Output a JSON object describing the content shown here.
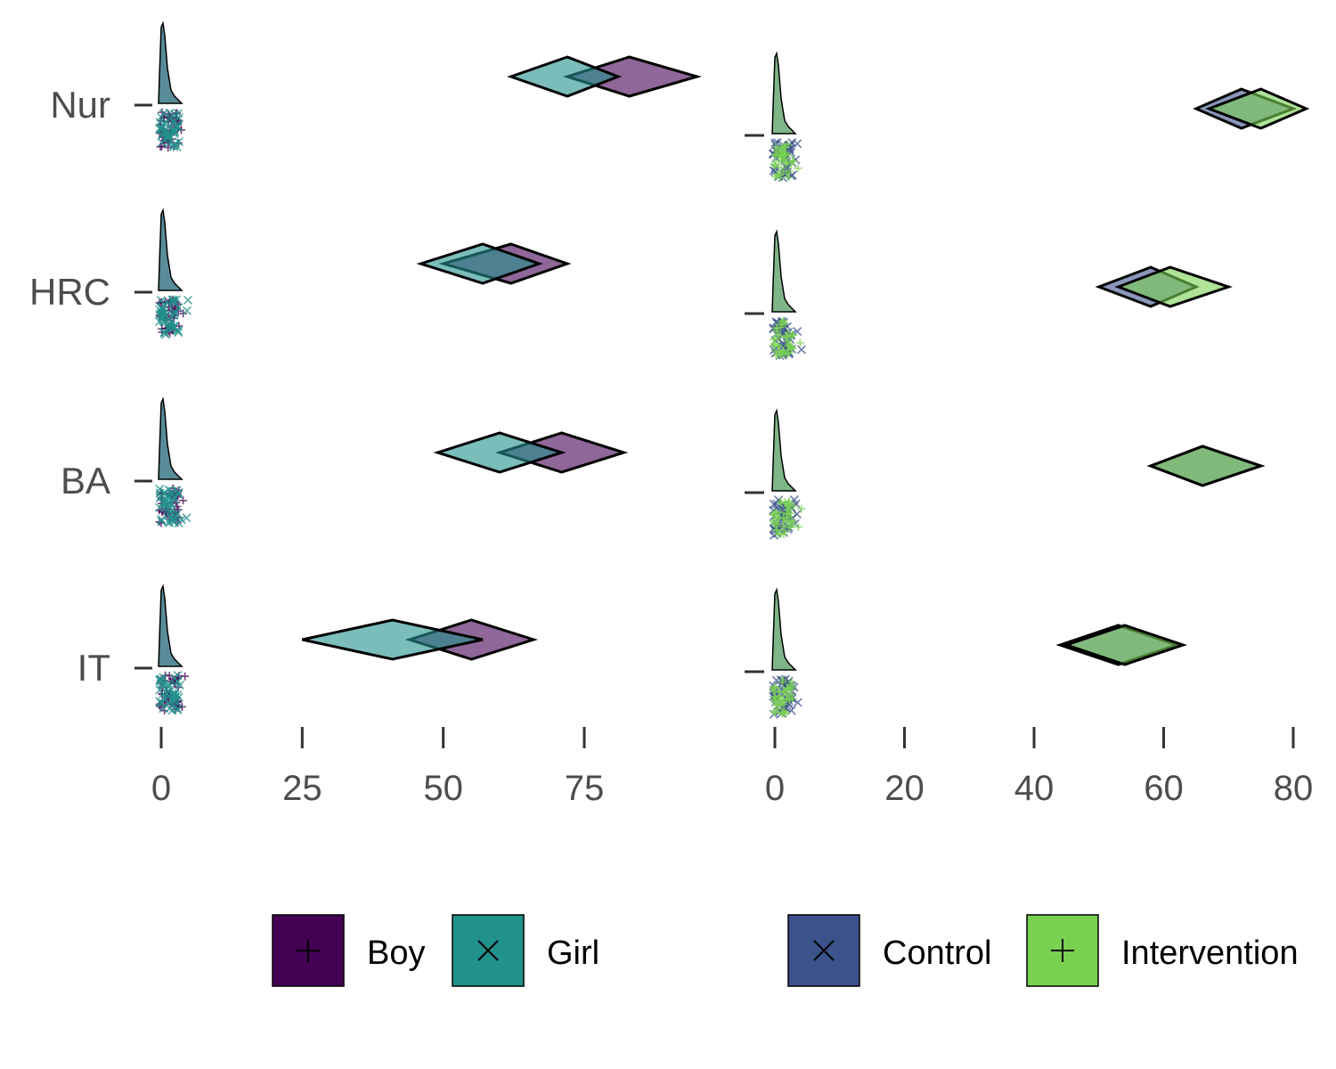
{
  "chart_data": [
    {
      "type": "raincloud",
      "title": "",
      "xlabel": "",
      "ylabel": "",
      "categories": [
        "Nur",
        "HRC",
        "BA",
        "IT"
      ],
      "x_ticks": [
        0,
        25,
        50,
        75
      ],
      "xlim": [
        -1,
        97
      ],
      "grid": false,
      "legend_position": "bottom",
      "series": [
        {
          "name": "Boy",
          "color": "#440154",
          "shape": "plus",
          "mean_interval": [
            {
              "category": "Nur",
              "low": 72,
              "center": 83,
              "high": 95
            },
            {
              "category": "HRC",
              "low": 50,
              "center": 62,
              "high": 72
            },
            {
              "category": "BA",
              "low": 60,
              "center": 71,
              "high": 82
            },
            {
              "category": "IT",
              "low": 44,
              "center": 55,
              "high": 66
            }
          ]
        },
        {
          "name": "Girl",
          "color": "#21918c",
          "shape": "cross",
          "mean_interval": [
            {
              "category": "Nur",
              "low": 62,
              "center": 72,
              "high": 81
            },
            {
              "category": "HRC",
              "low": 46,
              "center": 57,
              "high": 67
            },
            {
              "category": "BA",
              "low": 49,
              "center": 60,
              "high": 71
            },
            {
              "category": "IT",
              "low": 25,
              "center": 41,
              "high": 57
            }
          ]
        }
      ]
    },
    {
      "type": "raincloud",
      "title": "",
      "xlabel": "",
      "ylabel": "",
      "categories": [
        "Nur",
        "HRC",
        "BA",
        "IT"
      ],
      "x_ticks": [
        0,
        20,
        40,
        60,
        80
      ],
      "xlim": [
        -1,
        82
      ],
      "grid": false,
      "legend_position": "bottom",
      "series": [
        {
          "name": "Control",
          "color": "#3b528b",
          "shape": "cross",
          "mean_interval": [
            {
              "category": "Nur",
              "low": 65,
              "center": 72,
              "high": 80
            },
            {
              "category": "HRC",
              "low": 50,
              "center": 58,
              "high": 65
            },
            {
              "category": "BA",
              "low": 58,
              "center": 66,
              "high": 75
            },
            {
              "category": "IT",
              "low": 44,
              "center": 53,
              "high": 62
            }
          ]
        },
        {
          "name": "Intervention",
          "color": "#7ad151",
          "shape": "plus",
          "mean_interval": [
            {
              "category": "Nur",
              "low": 67,
              "center": 75,
              "high": 82
            },
            {
              "category": "HRC",
              "low": 53,
              "center": 61,
              "high": 70
            },
            {
              "category": "BA",
              "low": 58,
              "center": 66,
              "high": 75
            },
            {
              "category": "IT",
              "low": 45,
              "center": 54,
              "high": 63
            }
          ]
        }
      ]
    }
  ]
}
